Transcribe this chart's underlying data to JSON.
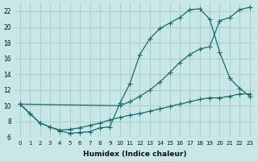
{
  "xlabel": "Humidex (Indice chaleur)",
  "xlim": [
    -0.5,
    23.5
  ],
  "ylim": [
    6,
    23
  ],
  "yticks": [
    6,
    8,
    10,
    12,
    14,
    16,
    18,
    20,
    22
  ],
  "xticks": [
    0,
    1,
    2,
    3,
    4,
    5,
    6,
    7,
    8,
    9,
    10,
    11,
    12,
    13,
    14,
    15,
    16,
    17,
    18,
    19,
    20,
    21,
    22,
    23
  ],
  "bg_color": "#c8e8e8",
  "grid_color": "#b0d0d0",
  "line_color": "#1a6b6b",
  "curve1_x": [
    0,
    1,
    2,
    3,
    4,
    5,
    6,
    7,
    8,
    9,
    10,
    11,
    12,
    13,
    14,
    15,
    16,
    17,
    18,
    19,
    20,
    21,
    22,
    23
  ],
  "curve1_y": [
    10.2,
    9.0,
    7.8,
    7.3,
    6.8,
    6.5,
    6.6,
    6.7,
    7.2,
    7.3,
    10.3,
    12.8,
    16.5,
    18.5,
    19.8,
    20.5,
    21.2,
    22.2,
    22.3,
    21.0,
    16.8,
    13.5,
    12.2,
    11.2
  ],
  "curve2_x": [
    0,
    10,
    11,
    12,
    13,
    14,
    15,
    16,
    17,
    18,
    19,
    20,
    21,
    22,
    23
  ],
  "curve2_y": [
    10.2,
    10.0,
    10.5,
    11.2,
    12.0,
    13.0,
    14.2,
    15.5,
    16.5,
    17.2,
    17.5,
    20.8,
    21.2,
    22.2,
    22.5
  ],
  "curve3_x": [
    0,
    1,
    2,
    3,
    4,
    5,
    6,
    7,
    8,
    9,
    10,
    11,
    12,
    13,
    14,
    15,
    16,
    17,
    18,
    19,
    20,
    21,
    22,
    23
  ],
  "curve3_y": [
    10.2,
    9.0,
    7.8,
    7.3,
    6.9,
    7.0,
    7.2,
    7.5,
    7.8,
    8.2,
    8.5,
    8.8,
    9.0,
    9.3,
    9.6,
    9.9,
    10.2,
    10.5,
    10.8,
    11.0,
    11.0,
    11.2,
    11.5,
    11.5
  ]
}
